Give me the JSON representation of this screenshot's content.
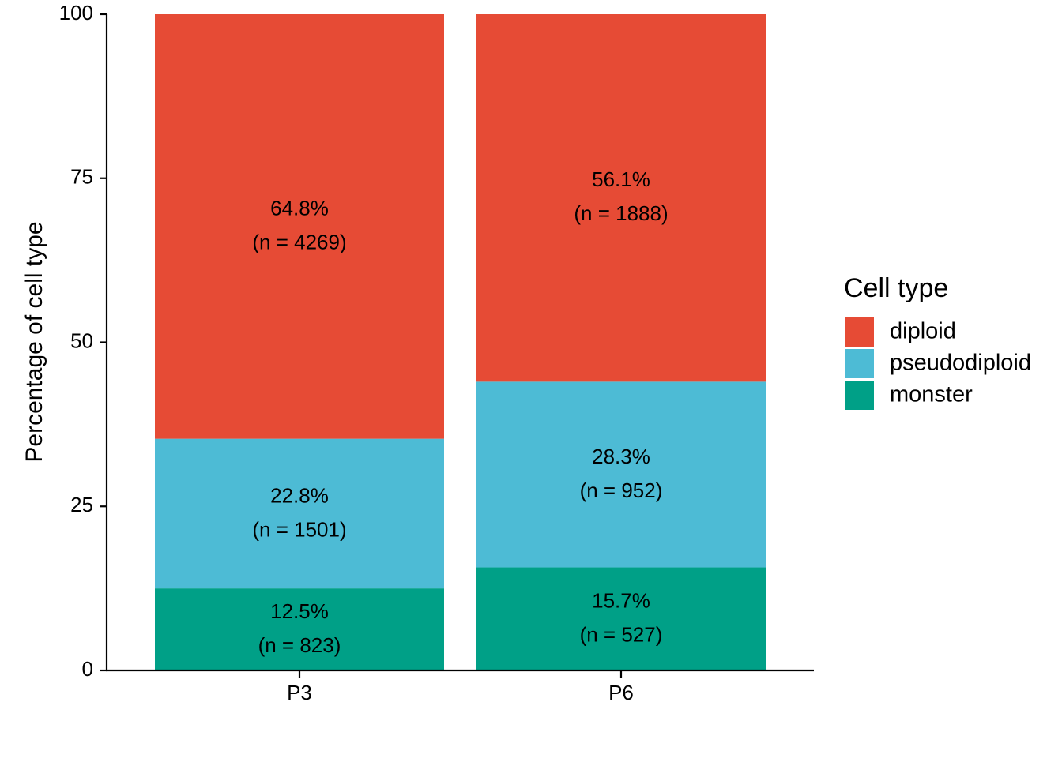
{
  "chart_data": {
    "type": "bar",
    "stacked": true,
    "title": "",
    "xlabel": "",
    "ylabel": "Percentage of cell type",
    "ylim": [
      0,
      100
    ],
    "yticks": [
      0,
      25,
      50,
      75,
      100
    ],
    "grid": false,
    "legend_position": "right",
    "categories": [
      "P3",
      "P6"
    ],
    "series": [
      {
        "name": "monster",
        "color": "#00A087",
        "values": [
          12.5,
          15.7
        ],
        "labels": [
          {
            "pct": "12.5%",
            "n": "(n = 823)"
          },
          {
            "pct": "15.7%",
            "n": "(n = 527)"
          }
        ]
      },
      {
        "name": "pseudodiploid",
        "color": "#4DBBD5",
        "values": [
          22.8,
          28.3
        ],
        "labels": [
          {
            "pct": "22.8%",
            "n": "(n = 1501)"
          },
          {
            "pct": "28.3%",
            "n": "(n = 952)"
          }
        ]
      },
      {
        "name": "diploid",
        "color": "#E64B35",
        "values": [
          64.8,
          56.1
        ],
        "labels": [
          {
            "pct": "64.8%",
            "n": "(n = 4269)"
          },
          {
            "pct": "56.1%",
            "n": "(n = 1888)"
          }
        ]
      }
    ],
    "legend": {
      "title": "Cell type",
      "entries": [
        {
          "name": "diploid",
          "color": "#E64B35"
        },
        {
          "name": "pseudodiploid",
          "color": "#4DBBD5"
        },
        {
          "name": "monster",
          "color": "#00A087"
        }
      ]
    }
  }
}
